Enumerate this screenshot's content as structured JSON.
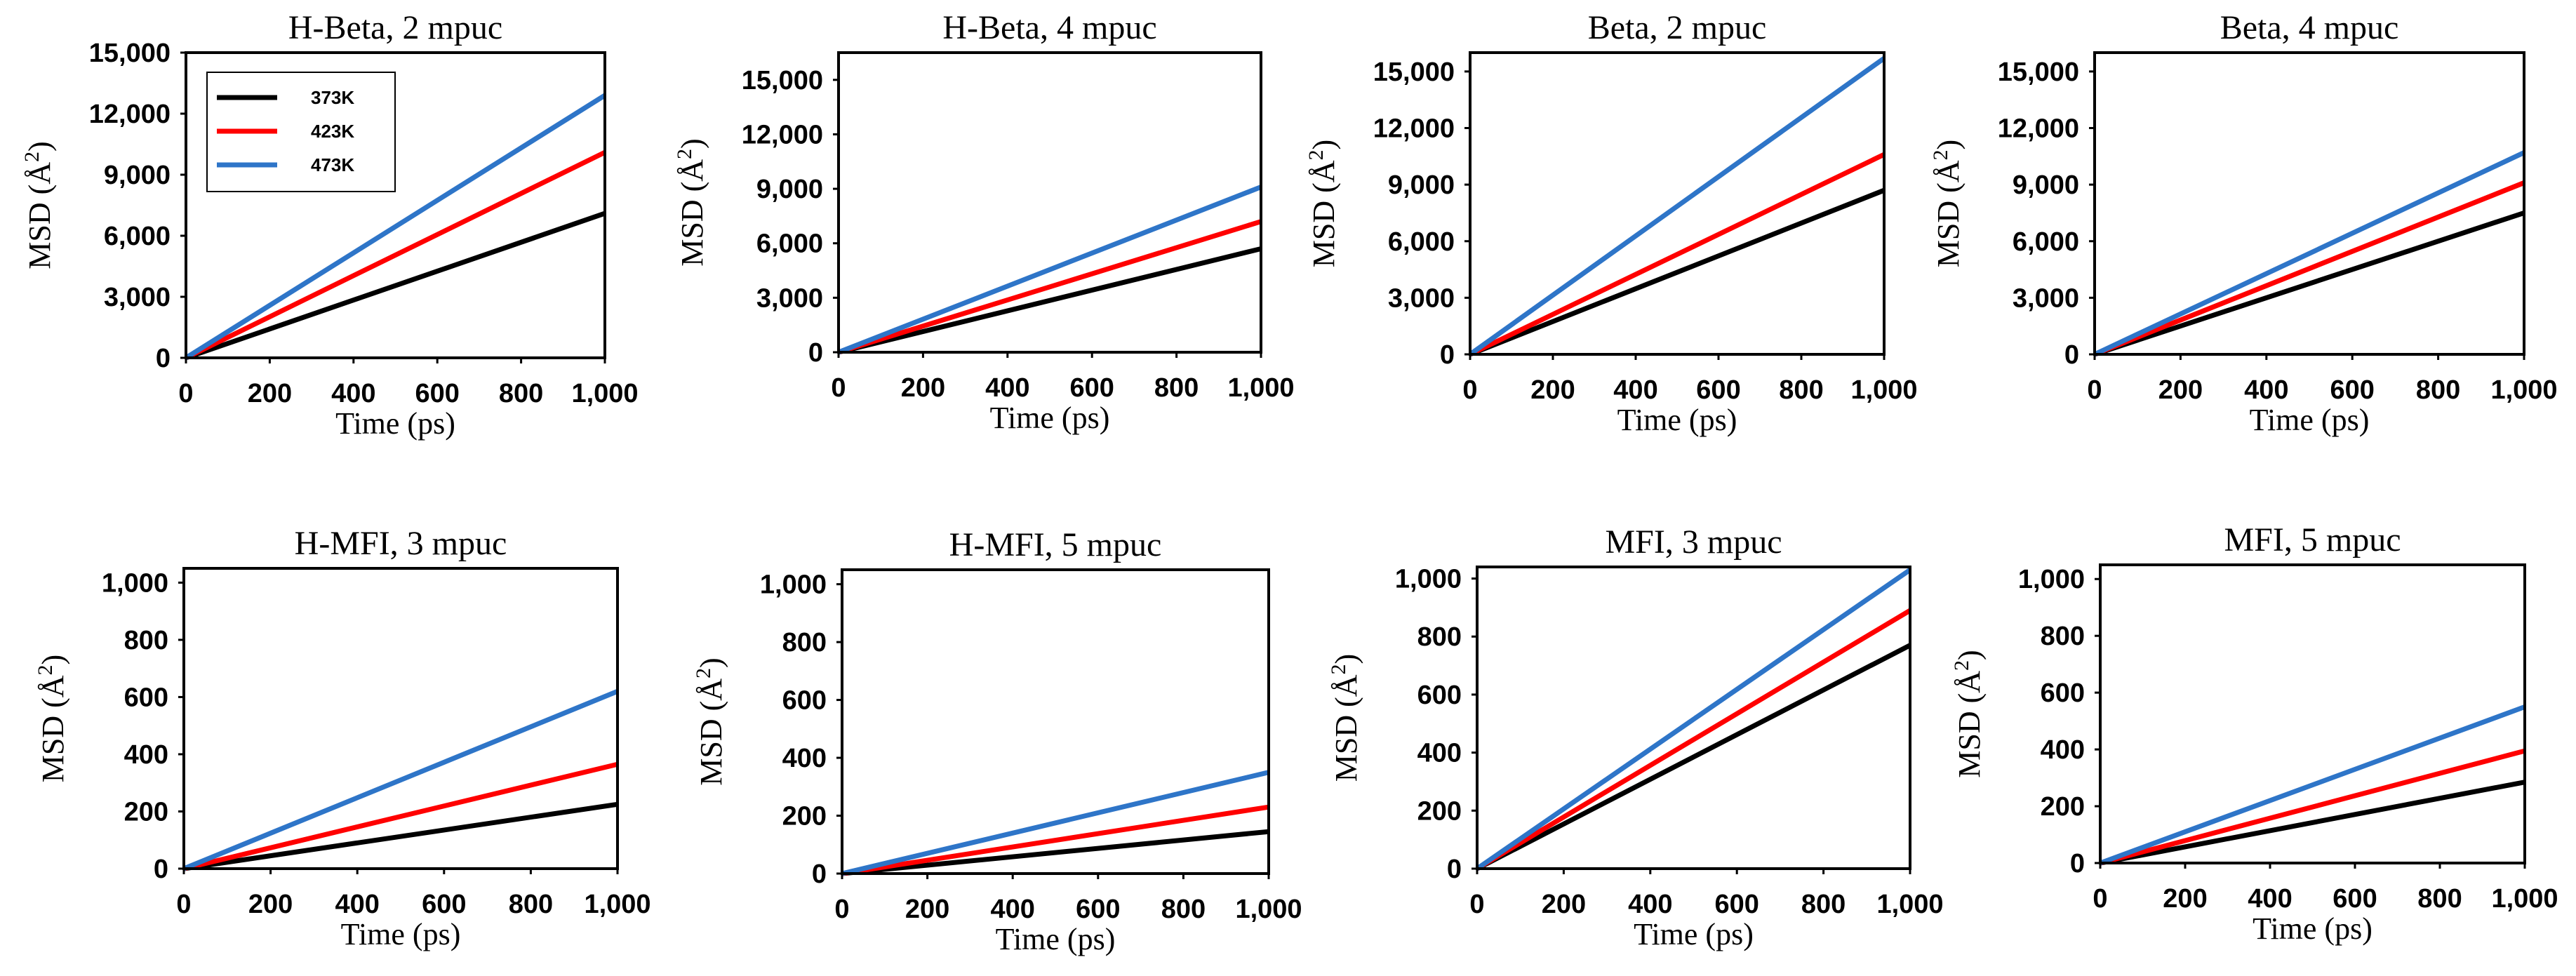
{
  "legend": {
    "entries": [
      {
        "label": "373K",
        "color": "#000000"
      },
      {
        "label": "423K",
        "color": "#ff0000"
      },
      {
        "label": "473K",
        "color": "#2e75c8"
      }
    ]
  },
  "chart_data": [
    {
      "type": "line",
      "title": "H-Beta, 2 mpuc",
      "xlabel": "Time (ps)",
      "ylabel_main": "MSD (Å",
      "ylabel_sup": "2",
      "ylabel_end": ")",
      "xlim": [
        0,
        1000
      ],
      "ylim": [
        0,
        15000
      ],
      "xticks": [
        "0",
        "200",
        "400",
        "600",
        "800",
        "1,000"
      ],
      "yticks": [
        "0",
        "3,000",
        "6,000",
        "9,000",
        "12,000",
        "15,000"
      ],
      "show_legend": true,
      "legend_position": "top-left",
      "series": [
        {
          "name": "373K",
          "color": "#000000",
          "x": [
            0,
            1000
          ],
          "y": [
            0,
            7100
          ]
        },
        {
          "name": "423K",
          "color": "#ff0000",
          "x": [
            0,
            1000
          ],
          "y": [
            0,
            10100
          ]
        },
        {
          "name": "473K",
          "color": "#2e75c8",
          "x": [
            0,
            1000
          ],
          "y": [
            0,
            12900
          ]
        }
      ]
    },
    {
      "type": "line",
      "title": "H-Beta, 4 mpuc",
      "xlabel": "Time (ps)",
      "ylabel_main": "MSD (Å",
      "ylabel_sup": "2",
      "ylabel_end": ")",
      "xlim": [
        0,
        1000
      ],
      "ylim": [
        0,
        16500
      ],
      "xticks": [
        "0",
        "200",
        "400",
        "600",
        "800",
        "1,000"
      ],
      "yticks": [
        "0",
        "3,000",
        "6,000",
        "9,000",
        "12,000",
        "15,000"
      ],
      "show_legend": false,
      "series": [
        {
          "name": "373K",
          "color": "#000000",
          "x": [
            0,
            1000
          ],
          "y": [
            0,
            5700
          ]
        },
        {
          "name": "423K",
          "color": "#ff0000",
          "x": [
            0,
            1000
          ],
          "y": [
            0,
            7200
          ]
        },
        {
          "name": "473K",
          "color": "#2e75c8",
          "x": [
            0,
            1000
          ],
          "y": [
            0,
            9100
          ]
        }
      ]
    },
    {
      "type": "line",
      "title": "Beta, 2 mpuc",
      "xlabel": "Time (ps)",
      "ylabel_main": "MSD (Å",
      "ylabel_sup": "2",
      "ylabel_end": ")",
      "xlim": [
        0,
        1000
      ],
      "ylim": [
        0,
        16000
      ],
      "xticks": [
        "0",
        "200",
        "400",
        "600",
        "800",
        "1,000"
      ],
      "yticks": [
        "0",
        "3,000",
        "6,000",
        "9,000",
        "12,000",
        "15,000"
      ],
      "show_legend": false,
      "series": [
        {
          "name": "373K",
          "color": "#000000",
          "x": [
            0,
            1000
          ],
          "y": [
            0,
            8700
          ]
        },
        {
          "name": "423K",
          "color": "#ff0000",
          "x": [
            0,
            1000
          ],
          "y": [
            0,
            10600
          ]
        },
        {
          "name": "473K",
          "color": "#2e75c8",
          "x": [
            0,
            1000
          ],
          "y": [
            0,
            15700
          ]
        }
      ]
    },
    {
      "type": "line",
      "title": "Beta, 4 mpuc",
      "xlabel": "Time (ps)",
      "ylabel_main": "MSD (Å",
      "ylabel_sup": "2",
      "ylabel_end": ")",
      "xlim": [
        0,
        1000
      ],
      "ylim": [
        0,
        16000
      ],
      "xticks": [
        "0",
        "200",
        "400",
        "600",
        "800",
        "1,000"
      ],
      "yticks": [
        "0",
        "3,000",
        "6,000",
        "9,000",
        "12,000",
        "15,000"
      ],
      "show_legend": false,
      "series": [
        {
          "name": "373K",
          "color": "#000000",
          "x": [
            0,
            1000
          ],
          "y": [
            0,
            7500
          ]
        },
        {
          "name": "423K",
          "color": "#ff0000",
          "x": [
            0,
            1000
          ],
          "y": [
            0,
            9100
          ]
        },
        {
          "name": "473K",
          "color": "#2e75c8",
          "x": [
            0,
            1000
          ],
          "y": [
            0,
            10700
          ]
        }
      ]
    },
    {
      "type": "line",
      "title": "H-MFI, 3 mpuc",
      "xlabel": "Time (ps)",
      "ylabel_main": "MSD (Å",
      "ylabel_sup": "2",
      "ylabel_end": ")",
      "xlim": [
        0,
        1000
      ],
      "ylim": [
        0,
        1050
      ],
      "xticks": [
        "0",
        "200",
        "400",
        "600",
        "800",
        "1,000"
      ],
      "yticks": [
        "0",
        "200",
        "400",
        "600",
        "800",
        "1,000"
      ],
      "show_legend": false,
      "series": [
        {
          "name": "373K",
          "color": "#000000",
          "x": [
            0,
            1000
          ],
          "y": [
            0,
            225
          ]
        },
        {
          "name": "423K",
          "color": "#ff0000",
          "x": [
            0,
            1000
          ],
          "y": [
            0,
            365
          ]
        },
        {
          "name": "473K",
          "color": "#2e75c8",
          "x": [
            0,
            1000
          ],
          "y": [
            0,
            620
          ]
        }
      ]
    },
    {
      "type": "line",
      "title": "H-MFI,  5 mpuc",
      "xlabel": "Time (ps)",
      "ylabel_main": "MSD (Å",
      "ylabel_sup": "2",
      "ylabel_end": ")",
      "xlim": [
        0,
        1000
      ],
      "ylim": [
        0,
        1050
      ],
      "xticks": [
        "0",
        "200",
        "400",
        "600",
        "800",
        "1,000"
      ],
      "yticks": [
        "0",
        "200",
        "400",
        "600",
        "800",
        "1,000"
      ],
      "show_legend": false,
      "series": [
        {
          "name": "373K",
          "color": "#000000",
          "x": [
            0,
            1000
          ],
          "y": [
            0,
            145
          ]
        },
        {
          "name": "423K",
          "color": "#ff0000",
          "x": [
            0,
            1000
          ],
          "y": [
            0,
            230
          ]
        },
        {
          "name": "473K",
          "color": "#2e75c8",
          "x": [
            0,
            1000
          ],
          "y": [
            0,
            350
          ]
        }
      ]
    },
    {
      "type": "line",
      "title": "MFI,  3 mpuc",
      "xlabel": "Time (ps)",
      "ylabel_main": "MSD (Å",
      "ylabel_sup": "2",
      "ylabel_end": ")",
      "xlim": [
        0,
        1000
      ],
      "ylim": [
        0,
        1040
      ],
      "xticks": [
        "0",
        "200",
        "400",
        "600",
        "800",
        "1,000"
      ],
      "yticks": [
        "0",
        "200",
        "400",
        "600",
        "800",
        "1,000"
      ],
      "show_legend": false,
      "series": [
        {
          "name": "373K",
          "color": "#000000",
          "x": [
            0,
            1000
          ],
          "y": [
            0,
            770
          ]
        },
        {
          "name": "423K",
          "color": "#ff0000",
          "x": [
            0,
            1000
          ],
          "y": [
            0,
            890
          ]
        },
        {
          "name": "473K",
          "color": "#2e75c8",
          "x": [
            0,
            1000
          ],
          "y": [
            0,
            1030
          ]
        }
      ]
    },
    {
      "type": "line",
      "title": "MFI,  5 mpuc",
      "xlabel": "Time (ps)",
      "ylabel_main": "MSD (Å",
      "ylabel_sup": "2",
      "ylabel_end": ")",
      "xlim": [
        0,
        1000
      ],
      "ylim": [
        0,
        1050
      ],
      "xticks": [
        "0",
        "200",
        "400",
        "600",
        "800",
        "1,000"
      ],
      "yticks": [
        "0",
        "200",
        "400",
        "600",
        "800",
        "1,000"
      ],
      "show_legend": false,
      "series": [
        {
          "name": "373K",
          "color": "#000000",
          "x": [
            0,
            1000
          ],
          "y": [
            0,
            285
          ]
        },
        {
          "name": "423K",
          "color": "#ff0000",
          "x": [
            0,
            1000
          ],
          "y": [
            0,
            395
          ]
        },
        {
          "name": "473K",
          "color": "#2e75c8",
          "x": [
            0,
            1000
          ],
          "y": [
            0,
            550
          ]
        }
      ]
    }
  ]
}
